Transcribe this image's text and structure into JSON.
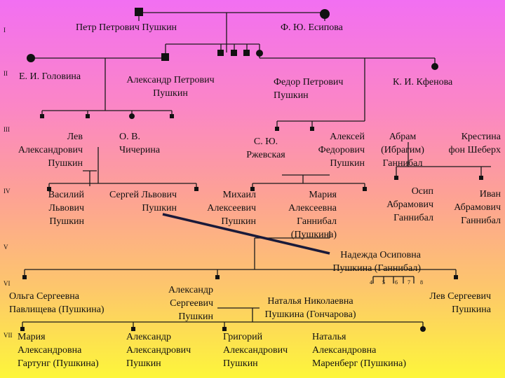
{
  "generations": [
    "I",
    "II",
    "III",
    "IV",
    "V",
    "VI",
    "VII"
  ],
  "nums": "4 5 6 7 8",
  "people": {
    "petr": [
      "Петр Петрович Пушкин"
    ],
    "esipova": [
      "Ф. Ю. Есипова"
    ],
    "golovina": [
      "Е. И. Головина"
    ],
    "aleksandr_p": [
      "Александр Петрович",
      "Пушкин"
    ],
    "fedor": [
      "Федор Петрович",
      "Пушкин"
    ],
    "kfenova": [
      "К. И. Кфенова"
    ],
    "lev_a": [
      "Лев",
      "Александрович",
      "Пушкин"
    ],
    "chicherina": [
      "О. В.",
      "Чичерина"
    ],
    "rzhevskaya": [
      "С. Ю.",
      "Ржевская"
    ],
    "aleksei": [
      "Алексей",
      "Федорович",
      "Пушкин"
    ],
    "abram": [
      "Абрам",
      "(Ибрагим)",
      "Ганнибал"
    ],
    "krestina": [
      "Крестина",
      "фон Шеберх"
    ],
    "vasily": [
      "Василий",
      "Львович",
      "Пушкин"
    ],
    "sergei": [
      "Сергей Львович",
      "Пушкин"
    ],
    "mikhail": [
      "Михаил",
      "Алексеевич",
      "Пушкин"
    ],
    "maria_a": [
      "Мария",
      "Алексеевна",
      "Ганнибал",
      "(Пушкина)"
    ],
    "osip": [
      "Осип",
      "Абрамович",
      "Ганнибал"
    ],
    "ivan": [
      "Иван",
      "Абрамович",
      "Ганнибал"
    ],
    "nadezhda": [
      "Надежда Осиповна",
      "Пушкина (Ганнибал)"
    ],
    "olga": [
      "Ольга Сергеевна",
      "Павлищева (Пушкина)"
    ],
    "aleksandr_s": [
      "Александр",
      "Сергеевич",
      "Пушкин"
    ],
    "natalya_n": [
      "Наталья Николаевна",
      "Пушкина (Гончарова)"
    ],
    "lev_s": [
      "Лев Сергеевич",
      "Пушкина"
    ],
    "maria_al": [
      "Мария",
      "Александровна",
      "Гартунг (Пушкина)"
    ],
    "aleksandr_al": [
      "Александр",
      "Александрович",
      "Пушкин"
    ],
    "grigory": [
      "Григорий",
      "Александрович",
      "Пушкин"
    ],
    "natalya_al": [
      "Наталья",
      "Александровна",
      "Маренберг  (Пушкина)"
    ]
  },
  "colors": {
    "line": "#1a1a1a",
    "accent_line": "#1a1a3a"
  }
}
